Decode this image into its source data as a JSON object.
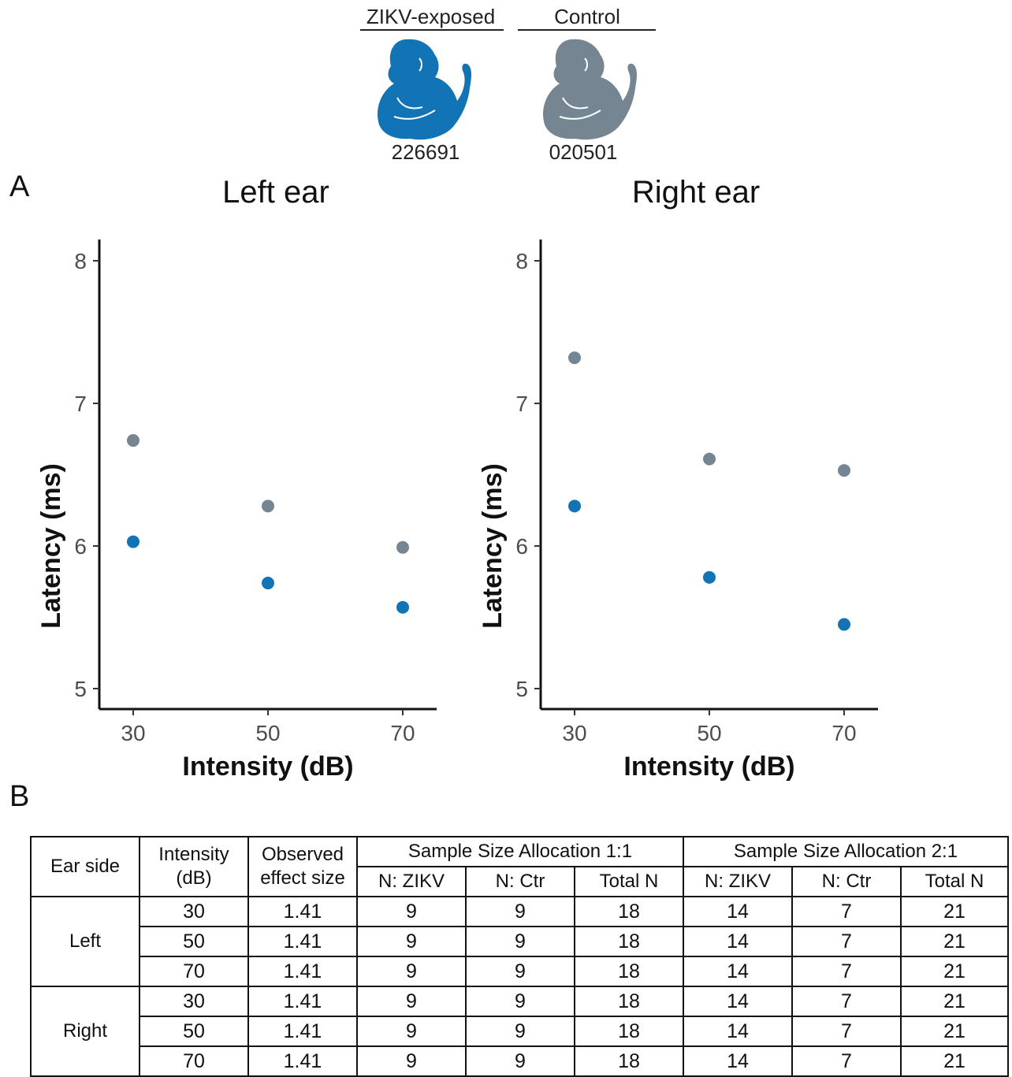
{
  "legend": {
    "zikv_label": "ZIKV-exposed",
    "control_label": "Control",
    "zikv_id": "226691",
    "control_id": "020501",
    "zikv_color": "#1273b5",
    "control_color": "#768592"
  },
  "panel_a_letter": "A",
  "panel_b_letter": "B",
  "chart_data": [
    {
      "type": "scatter",
      "title": "Left ear",
      "xlabel": "Intensity (dB)",
      "ylabel": "Latency (ms)",
      "x_ticks": [
        "30",
        "50",
        "70"
      ],
      "y_ticks": [
        "5",
        "6",
        "7",
        "8"
      ],
      "ylim": [
        4.85,
        8.15
      ],
      "series": [
        {
          "color": "#768592",
          "points": [
            {
              "x": 30,
              "y": 6.74
            },
            {
              "x": 50,
              "y": 6.28
            },
            {
              "x": 70,
              "y": 5.99
            }
          ]
        },
        {
          "color": "#1273b5",
          "points": [
            {
              "x": 30,
              "y": 6.03
            },
            {
              "x": 50,
              "y": 5.74
            },
            {
              "x": 70,
              "y": 5.57
            }
          ]
        }
      ]
    },
    {
      "type": "scatter",
      "title": "Right ear",
      "xlabel": "Intensity (dB)",
      "ylabel": "Latency (ms)",
      "x_ticks": [
        "30",
        "50",
        "70"
      ],
      "y_ticks": [
        "5",
        "6",
        "7",
        "8"
      ],
      "ylim": [
        4.85,
        8.15
      ],
      "series": [
        {
          "color": "#768592",
          "points": [
            {
              "x": 30,
              "y": 7.32
            },
            {
              "x": 50,
              "y": 6.61
            },
            {
              "x": 70,
              "y": 6.53
            }
          ]
        },
        {
          "color": "#1273b5",
          "points": [
            {
              "x": 30,
              "y": 6.28
            },
            {
              "x": 50,
              "y": 5.78
            },
            {
              "x": 70,
              "y": 5.45
            }
          ]
        }
      ]
    }
  ],
  "table": {
    "h_ear_side": "Ear side",
    "h_intensity_1": "Intensity",
    "h_intensity_2": "(dB)",
    "h_effect_1": "Observed",
    "h_effect_2": "effect size",
    "h_alloc_11": "Sample Size Allocation 1:1",
    "h_alloc_21": "Sample Size Allocation 2:1",
    "h_n_zikv": "N: ZIKV",
    "h_n_ctr": "N: Ctr",
    "h_total": "Total N",
    "groups": [
      "Left",
      "Right"
    ],
    "rows": [
      [
        "30",
        "1.41",
        "9",
        "9",
        "18",
        "14",
        "7",
        "21"
      ],
      [
        "50",
        "1.41",
        "9",
        "9",
        "18",
        "14",
        "7",
        "21"
      ],
      [
        "70",
        "1.41",
        "9",
        "9",
        "18",
        "14",
        "7",
        "21"
      ],
      [
        "30",
        "1.41",
        "9",
        "9",
        "18",
        "14",
        "7",
        "21"
      ],
      [
        "50",
        "1.41",
        "9",
        "9",
        "18",
        "14",
        "7",
        "21"
      ],
      [
        "70",
        "1.41",
        "9",
        "9",
        "18",
        "14",
        "7",
        "21"
      ]
    ]
  }
}
